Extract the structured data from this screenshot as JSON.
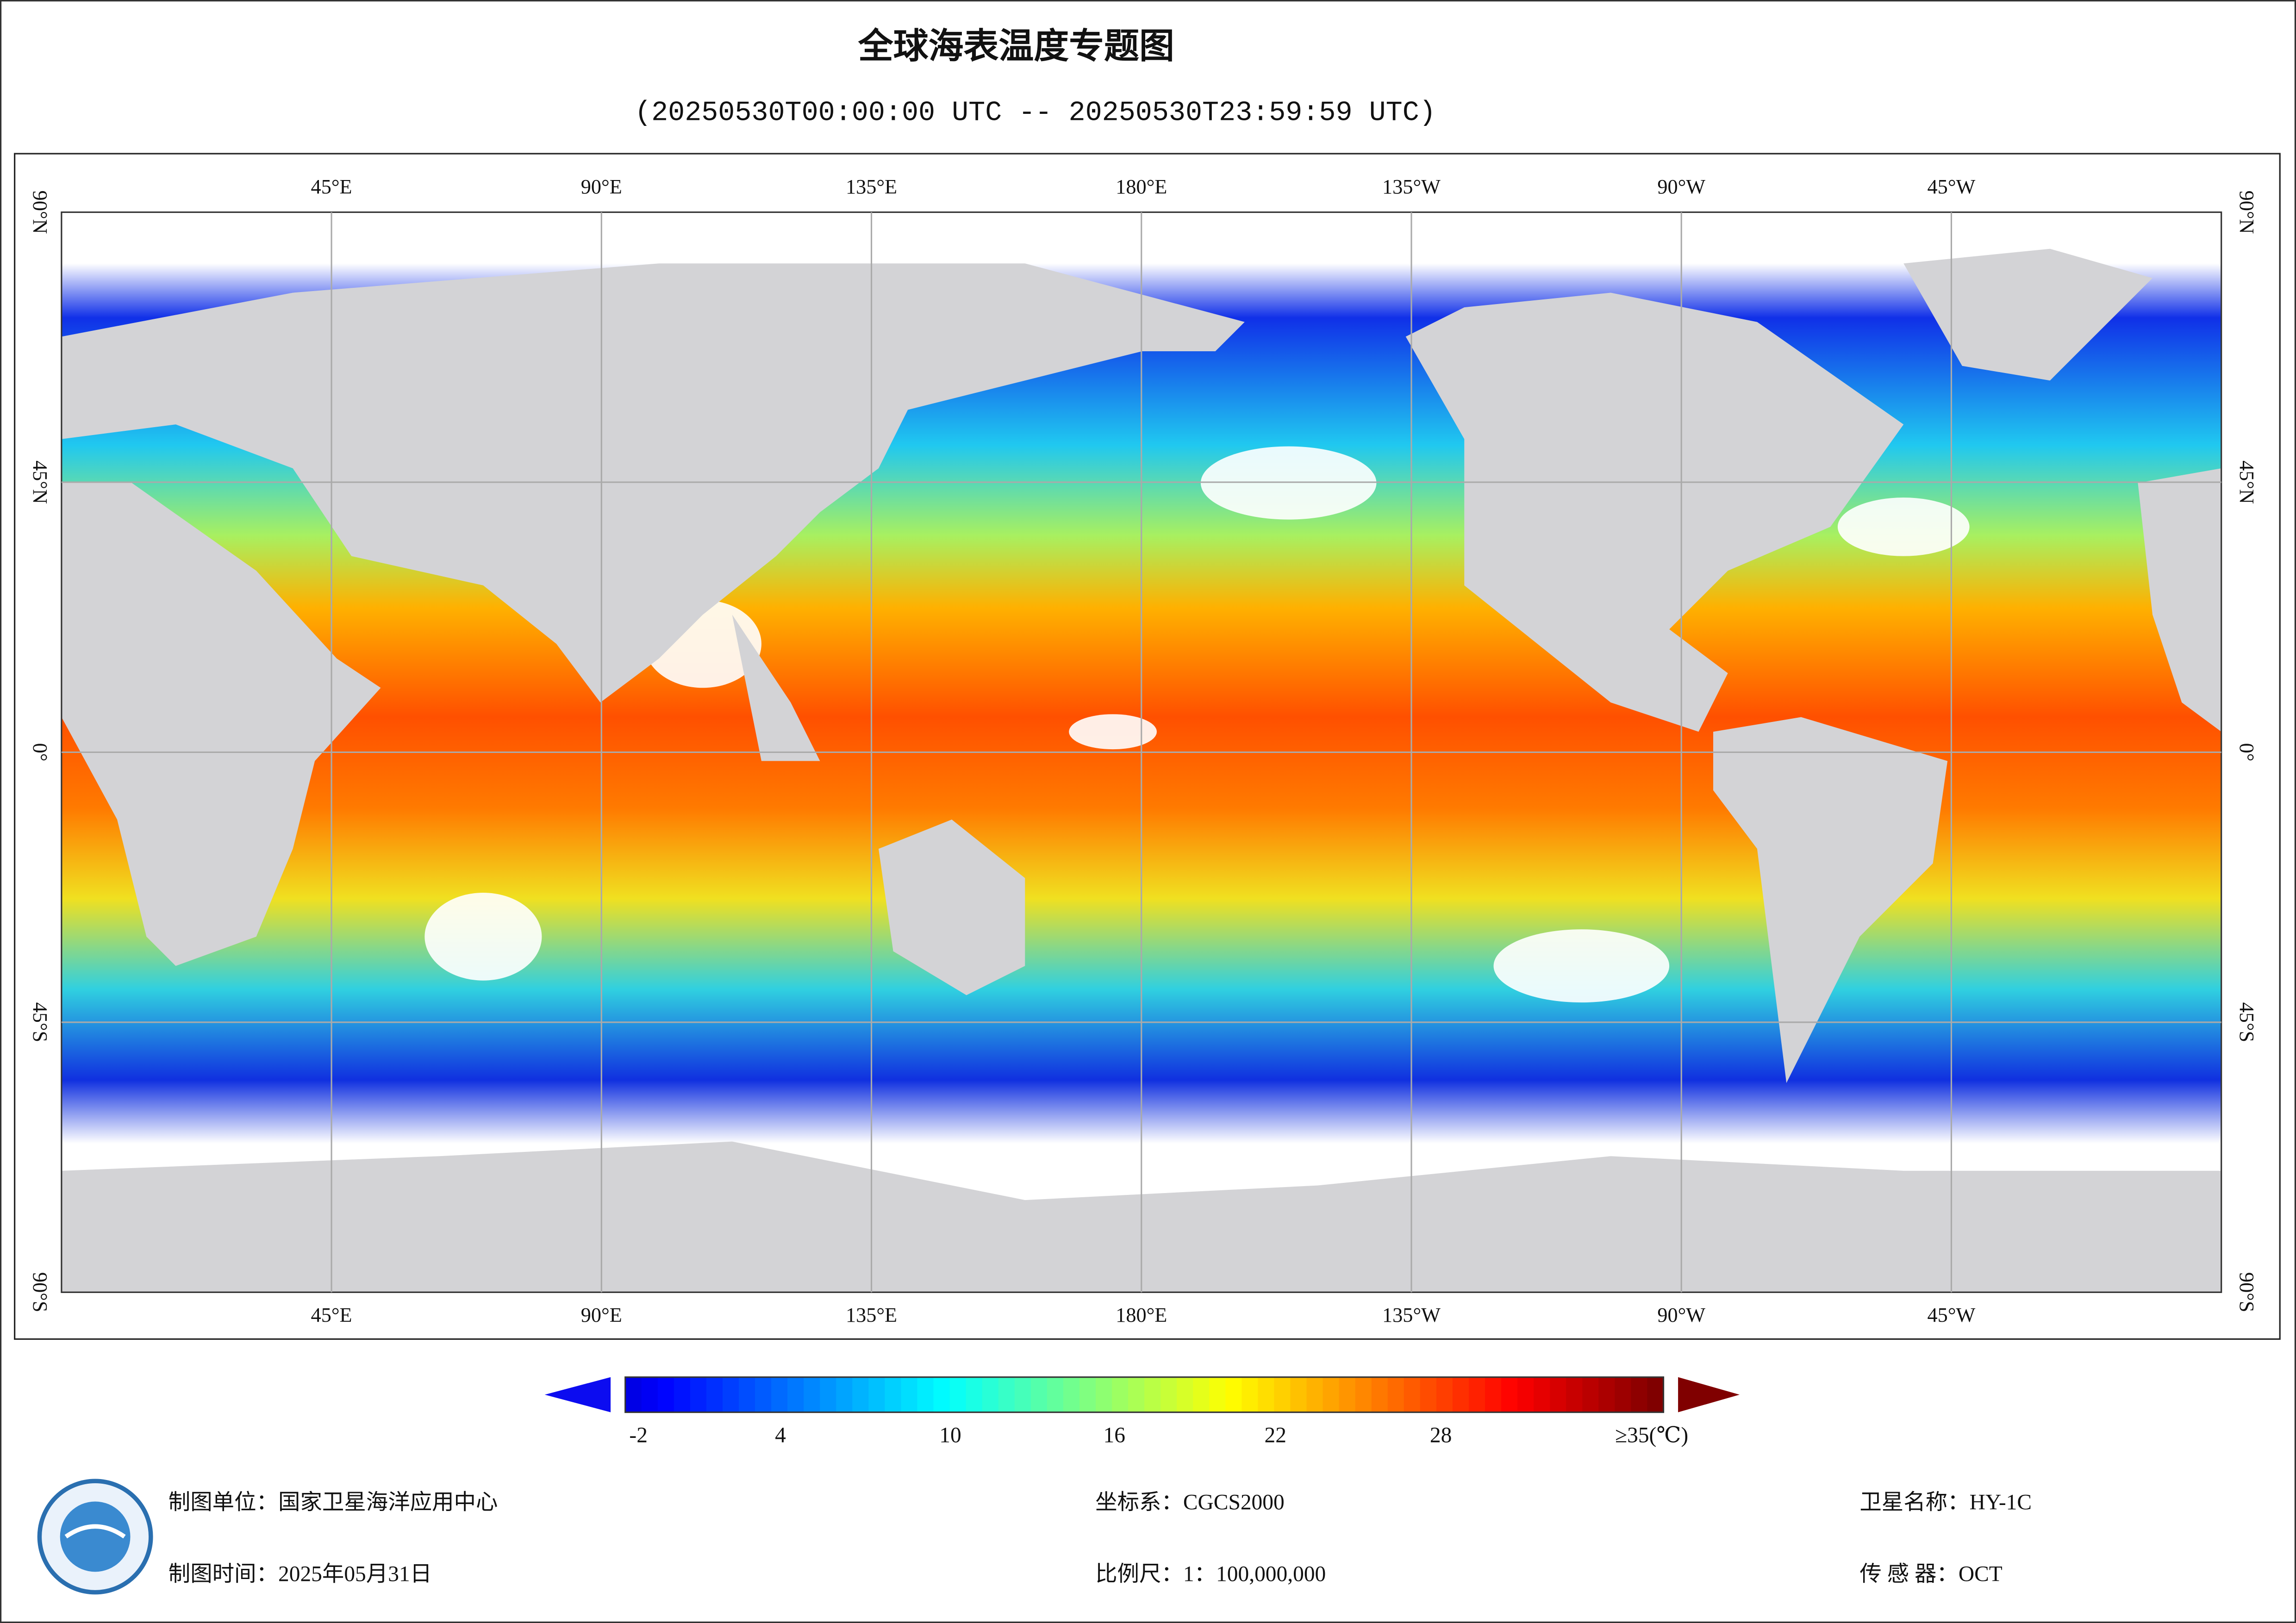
{
  "header": {
    "title": "全球海表温度专题图",
    "subtitle": "(20250530T00:00:00 UTC -- 20250530T23:59:59 UTC)"
  },
  "map": {
    "lon_labels": [
      "45°E",
      "90°E",
      "135°E",
      "180°E",
      "135°W",
      "90°W",
      "45°W"
    ],
    "lat_labels": [
      "90°N",
      "45°N",
      "0°",
      "45°S",
      "90°S"
    ]
  },
  "colorbar": {
    "labels": [
      "-2",
      "4",
      "10",
      "16",
      "22",
      "28",
      "≥35(℃)"
    ]
  },
  "footer": {
    "unit": "制图单位：国家卫星海洋应用中心",
    "date": "制图时间：2025年05月31日",
    "crs": "坐标系：CGCS2000",
    "scale": "比例尺：1：100,000,000",
    "satellite": "卫星名称：HY-1C",
    "sensor": "传 感 器：OCT"
  }
}
